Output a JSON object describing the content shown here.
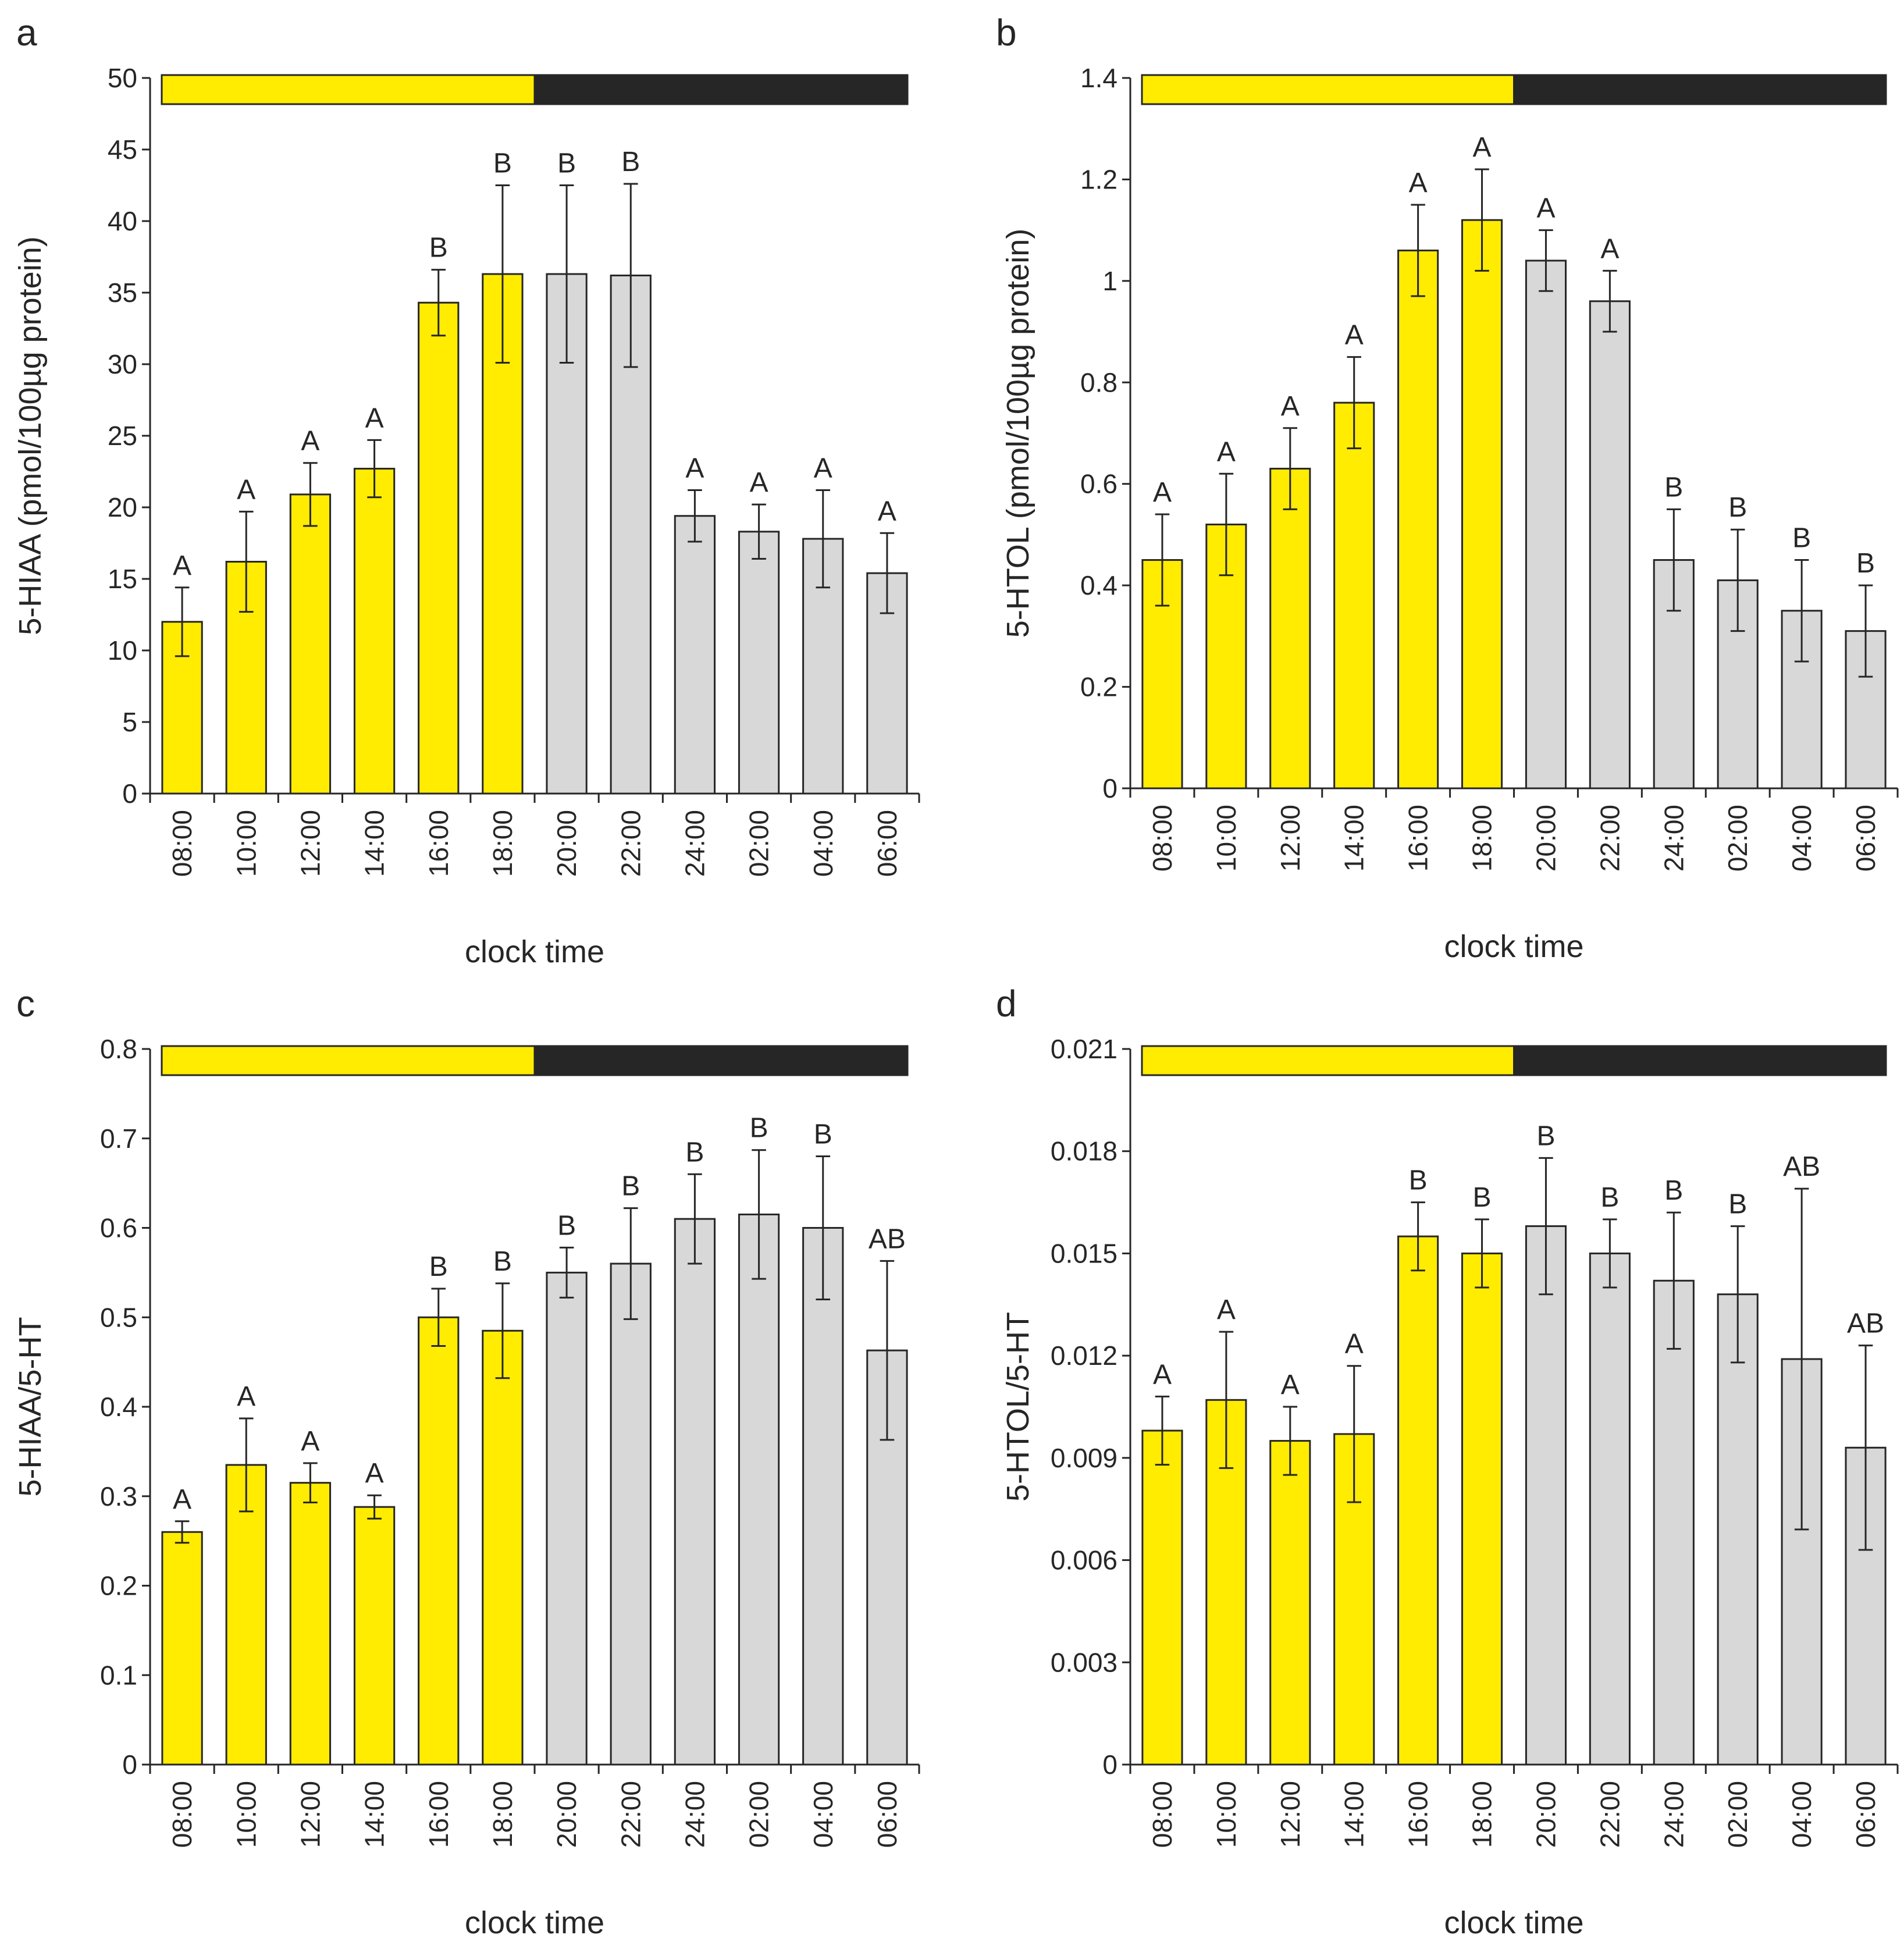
{
  "colors": {
    "light_bar": "#FFEC00",
    "dark_bar": "#D8D8D8",
    "light_phase": "#FFEC00",
    "dark_phase": "#262626",
    "axis": "#262626"
  },
  "chart_data": [
    {
      "type": "bar",
      "panel_label": "a",
      "title": "",
      "xlabel": "clock time",
      "ylabel": "5-HIAA (pmol/100µg protein)",
      "ylim": [
        0,
        50
      ],
      "yticks": [
        0,
        5,
        10,
        15,
        20,
        25,
        30,
        35,
        40,
        45,
        50
      ],
      "ytick_labels": [
        "0",
        "5",
        "10",
        "15",
        "20",
        "25",
        "30",
        "35",
        "40",
        "45",
        "50"
      ],
      "categories": [
        "08:00",
        "10:00",
        "12:00",
        "14:00",
        "16:00",
        "18:00",
        "20:00",
        "22:00",
        "24:00",
        "02:00",
        "04:00",
        "06:00"
      ],
      "phase": [
        "light",
        "light",
        "light",
        "light",
        "light",
        "light",
        "dark",
        "dark",
        "dark",
        "dark",
        "dark",
        "dark"
      ],
      "values": [
        12.0,
        16.2,
        20.9,
        22.7,
        34.3,
        36.3,
        36.3,
        36.2,
        19.4,
        18.3,
        17.8,
        15.4
      ],
      "errors": [
        2.4,
        3.5,
        2.2,
        2.0,
        2.3,
        6.2,
        6.2,
        6.4,
        1.8,
        1.9,
        3.4,
        2.8
      ],
      "significance": [
        "A",
        "A",
        "A",
        "A",
        "B",
        "B",
        "B",
        "B",
        "A",
        "A",
        "A",
        "A"
      ]
    },
    {
      "type": "bar",
      "panel_label": "b",
      "title": "",
      "xlabel": "clock time",
      "ylabel": "5-HTOL (pmol/100µg protein)",
      "ylim": [
        0,
        1.4
      ],
      "yticks": [
        0,
        0.2,
        0.4,
        0.6,
        0.8,
        1.0,
        1.2,
        1.4
      ],
      "ytick_labels": [
        "0",
        "0.2",
        "0.4",
        "0.6",
        "0.8",
        "1",
        "1.2",
        "1.4"
      ],
      "categories": [
        "08:00",
        "10:00",
        "12:00",
        "14:00",
        "16:00",
        "18:00",
        "20:00",
        "22:00",
        "24:00",
        "02:00",
        "04:00",
        "06:00"
      ],
      "phase": [
        "light",
        "light",
        "light",
        "light",
        "light",
        "light",
        "dark",
        "dark",
        "dark",
        "dark",
        "dark",
        "dark"
      ],
      "values": [
        0.45,
        0.52,
        0.63,
        0.76,
        1.06,
        1.12,
        1.04,
        0.96,
        0.45,
        0.41,
        0.35,
        0.31
      ],
      "errors": [
        0.09,
        0.1,
        0.08,
        0.09,
        0.09,
        0.1,
        0.06,
        0.06,
        0.1,
        0.1,
        0.1,
        0.09
      ],
      "significance": [
        "A",
        "A",
        "A",
        "A",
        "A",
        "A",
        "A",
        "A",
        "B",
        "B",
        "B",
        "B"
      ]
    },
    {
      "type": "bar",
      "panel_label": "c",
      "title": "",
      "xlabel": "clock time",
      "ylabel": "5-HIAA/5-HT",
      "ylim": [
        0,
        0.8
      ],
      "yticks": [
        0,
        0.1,
        0.2,
        0.3,
        0.4,
        0.5,
        0.6,
        0.7,
        0.8
      ],
      "ytick_labels": [
        "0",
        "0.1",
        "0.2",
        "0.3",
        "0.4",
        "0.5",
        "0.6",
        "0.7",
        "0.8"
      ],
      "categories": [
        "08:00",
        "10:00",
        "12:00",
        "14:00",
        "16:00",
        "18:00",
        "20:00",
        "22:00",
        "24:00",
        "02:00",
        "04:00",
        "06:00"
      ],
      "phase": [
        "light",
        "light",
        "light",
        "light",
        "light",
        "light",
        "dark",
        "dark",
        "dark",
        "dark",
        "dark",
        "dark"
      ],
      "values": [
        0.26,
        0.335,
        0.315,
        0.288,
        0.5,
        0.485,
        0.55,
        0.56,
        0.61,
        0.615,
        0.6,
        0.463
      ],
      "errors": [
        0.012,
        0.052,
        0.022,
        0.013,
        0.032,
        0.053,
        0.028,
        0.062,
        0.05,
        0.072,
        0.08,
        0.1
      ],
      "significance": [
        "A",
        "A",
        "A",
        "A",
        "B",
        "B",
        "B",
        "B",
        "B",
        "B",
        "B",
        "AB"
      ]
    },
    {
      "type": "bar",
      "panel_label": "d",
      "title": "",
      "xlabel": "clock time",
      "ylabel": "5-HTOL/5-HT",
      "ylim": [
        0,
        0.021
      ],
      "yticks": [
        0,
        0.003,
        0.006,
        0.009,
        0.012,
        0.015,
        0.018,
        0.021
      ],
      "ytick_labels": [
        "0",
        "0.003",
        "0.006",
        "0.009",
        "0.012",
        "0.015",
        "0.018",
        "0.021"
      ],
      "categories": [
        "08:00",
        "10:00",
        "12:00",
        "14:00",
        "16:00",
        "18:00",
        "20:00",
        "22:00",
        "24:00",
        "02:00",
        "04:00",
        "06:00"
      ],
      "phase": [
        "light",
        "light",
        "light",
        "light",
        "light",
        "light",
        "dark",
        "dark",
        "dark",
        "dark",
        "dark",
        "dark"
      ],
      "values": [
        0.0098,
        0.0107,
        0.0095,
        0.0097,
        0.0155,
        0.015,
        0.0158,
        0.015,
        0.0142,
        0.0138,
        0.0119,
        0.0093
      ],
      "errors": [
        0.001,
        0.002,
        0.001,
        0.002,
        0.001,
        0.001,
        0.002,
        0.001,
        0.002,
        0.002,
        0.005,
        0.003
      ],
      "significance": [
        "A",
        "A",
        "A",
        "A",
        "B",
        "B",
        "B",
        "B",
        "B",
        "B",
        "AB",
        "AB"
      ]
    }
  ]
}
